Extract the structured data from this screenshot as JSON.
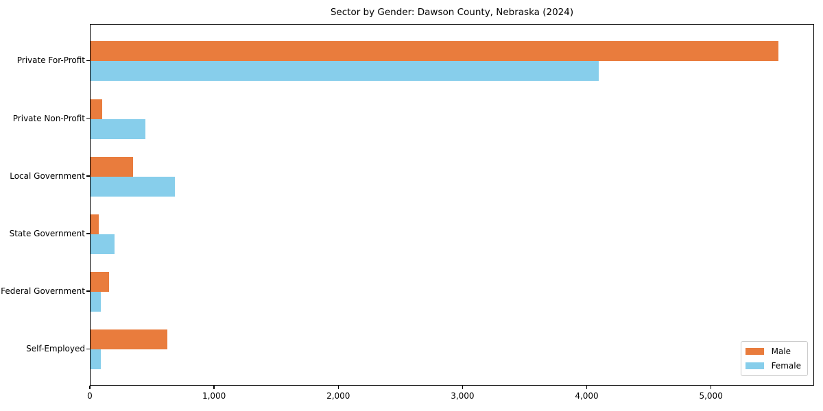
{
  "title": "Sector by Gender: Dawson County, Nebraska (2024)",
  "colors": {
    "male": "#E97C3D",
    "female": "#87CEEB",
    "plot_border": "#000000",
    "legend_border": "#CCCCCC",
    "background": "#FFFFFF"
  },
  "legend": {
    "position": "lower right",
    "items": [
      {
        "label": "Male",
        "color": "#E97C3D"
      },
      {
        "label": "Female",
        "color": "#87CEEB"
      }
    ]
  },
  "chart_data": {
    "type": "bar",
    "orientation": "horizontal",
    "title": "Sector by Gender: Dawson County, Nebraska (2024)",
    "categories": [
      "Private For-Profit",
      "Private Non-Profit",
      "Local Government",
      "State Government",
      "Federal Government",
      "Self-Employed"
    ],
    "series": [
      {
        "name": "Male",
        "color": "#E97C3D",
        "values": [
          5540,
          95,
          345,
          65,
          150,
          620
        ]
      },
      {
        "name": "Female",
        "color": "#87CEEB",
        "values": [
          4090,
          440,
          680,
          195,
          85,
          85
        ]
      }
    ],
    "xlim": [
      0,
      5830
    ],
    "xticks": [
      0,
      1000,
      2000,
      3000,
      4000,
      5000
    ],
    "xtick_labels": [
      "0",
      "1,000",
      "2,000",
      "3,000",
      "4,000",
      "5,000"
    ],
    "xlabel": "",
    "ylabel": "",
    "grid": false,
    "legend_position": "lower right"
  }
}
